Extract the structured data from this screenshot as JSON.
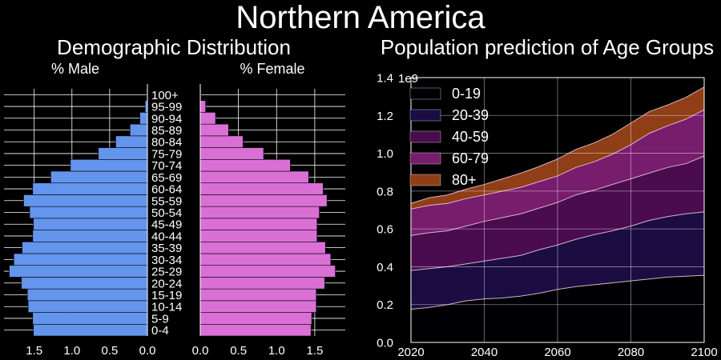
{
  "title": "Northern America",
  "colors": {
    "background": "#000000",
    "male": "#6495ed",
    "female": "#da70d6",
    "grid": "#ffffff",
    "area": [
      "#000004",
      "#1b0c41",
      "#4a0c4e",
      "#781c6d",
      "#8f3e18"
    ]
  },
  "chart_data": [
    {
      "type": "bar",
      "orientation": "horizontal",
      "title": "Demographic Distribution",
      "categories": [
        "0-4",
        "5-9",
        "10-14",
        "15-19",
        "20-24",
        "25-29",
        "30-34",
        "35-39",
        "40-44",
        "45-49",
        "50-54",
        "55-59",
        "60-64",
        "65-69",
        "70-74",
        "75-79",
        "80-84",
        "85-89",
        "90-94",
        "95-99",
        "100+"
      ],
      "male": {
        "label": "% Male",
        "values": [
          1.51,
          1.52,
          1.58,
          1.59,
          1.67,
          1.83,
          1.77,
          1.66,
          1.52,
          1.51,
          1.56,
          1.64,
          1.52,
          1.28,
          1.02,
          0.65,
          0.42,
          0.23,
          0.1,
          0.03,
          0.01
        ],
        "xlim": [
          1.9,
          0
        ],
        "xticks": [
          1.5,
          1.0,
          0.5,
          0.0
        ]
      },
      "female": {
        "label": "% Female",
        "values": [
          1.45,
          1.46,
          1.52,
          1.52,
          1.63,
          1.77,
          1.71,
          1.64,
          1.53,
          1.53,
          1.56,
          1.66,
          1.61,
          1.42,
          1.18,
          0.83,
          0.56,
          0.37,
          0.2,
          0.07,
          0.01
        ],
        "xlim": [
          0,
          1.9
        ],
        "xticks": [
          0.0,
          0.5,
          1.0,
          1.5
        ]
      },
      "tick_labels": {
        "male": [
          "1.5",
          "1.0",
          "0.5",
          "0.0"
        ],
        "female": [
          "0.0",
          "0.5",
          "1.0",
          "1.5"
        ]
      }
    },
    {
      "type": "area",
      "stacked": true,
      "title": "Population prediction of Age Groups",
      "x": [
        2020,
        2025,
        2030,
        2035,
        2040,
        2045,
        2050,
        2055,
        2060,
        2065,
        2070,
        2075,
        2080,
        2085,
        2090,
        2095,
        2100
      ],
      "series": [
        {
          "name": "0-19",
          "values": [
            0.175,
            0.185,
            0.2,
            0.22,
            0.23,
            0.235,
            0.245,
            0.26,
            0.28,
            0.295,
            0.305,
            0.315,
            0.325,
            0.335,
            0.345,
            0.35,
            0.355
          ]
        },
        {
          "name": "20-39",
          "values": [
            0.205,
            0.205,
            0.2,
            0.195,
            0.2,
            0.21,
            0.215,
            0.23,
            0.235,
            0.25,
            0.265,
            0.275,
            0.29,
            0.31,
            0.32,
            0.33,
            0.335
          ]
        },
        {
          "name": "40-59",
          "values": [
            0.185,
            0.19,
            0.19,
            0.2,
            0.21,
            0.215,
            0.22,
            0.22,
            0.225,
            0.235,
            0.235,
            0.245,
            0.25,
            0.25,
            0.26,
            0.265,
            0.295
          ]
        },
        {
          "name": "60-79",
          "values": [
            0.14,
            0.145,
            0.145,
            0.145,
            0.14,
            0.14,
            0.14,
            0.14,
            0.14,
            0.145,
            0.15,
            0.16,
            0.18,
            0.21,
            0.22,
            0.235,
            0.245
          ]
        },
        {
          "name": "80+",
          "values": [
            0.03,
            0.04,
            0.045,
            0.05,
            0.055,
            0.065,
            0.075,
            0.08,
            0.09,
            0.095,
            0.1,
            0.105,
            0.115,
            0.115,
            0.11,
            0.115,
            0.12
          ]
        }
      ],
      "xlim": [
        2020,
        2100
      ],
      "ylim": [
        0,
        1.4
      ],
      "xticks": [
        2020,
        2040,
        2060,
        2080,
        2100
      ],
      "yticks": [
        0.0,
        0.2,
        0.4,
        0.6,
        0.8,
        1.0,
        1.2,
        1.4
      ],
      "ytick_labels": [
        "0.0",
        "0.2",
        "0.4",
        "0.6",
        "0.8",
        "1.0",
        "1.2",
        "1.4"
      ],
      "y_offset_label": "1e9",
      "grid": true,
      "legend": "top-left"
    }
  ]
}
